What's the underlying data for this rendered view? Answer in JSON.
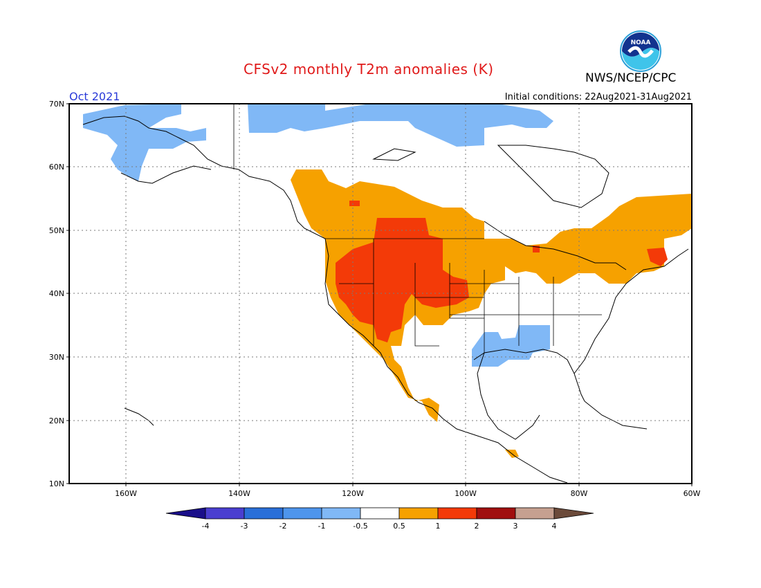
{
  "header": {
    "title": "CFSv2 monthly T2m anomalies (K)",
    "org": "NWS/NCEP/CPC",
    "month": "Oct 2021",
    "initial_conditions": "Initial conditions: 22Aug2021-31Aug2021",
    "logo_text": "NOAA"
  },
  "axes": {
    "lat_labels": [
      "70N",
      "60N",
      "50N",
      "40N",
      "30N",
      "20N",
      "10N"
    ],
    "lon_labels": [
      "160W",
      "140W",
      "120W",
      "100W",
      "80W",
      "60W"
    ]
  },
  "colorbar": {
    "labels": [
      "-4",
      "-3",
      "-2",
      "-1",
      "-0.5",
      "0.5",
      "1",
      "2",
      "3",
      "4"
    ],
    "colors": [
      "#1a0f8a",
      "#4a3fd0",
      "#2a6fd8",
      "#4e95ec",
      "#80b8f6",
      "#ffffff",
      "#f6a100",
      "#f33a08",
      "#a00f0f",
      "#c6a090",
      "#6b4a3a"
    ]
  },
  "legend_colors": {
    "weak_negative": "#80b8f6",
    "weak_positive": "#f6a100",
    "moderate_positive": "#f33a08"
  }
}
